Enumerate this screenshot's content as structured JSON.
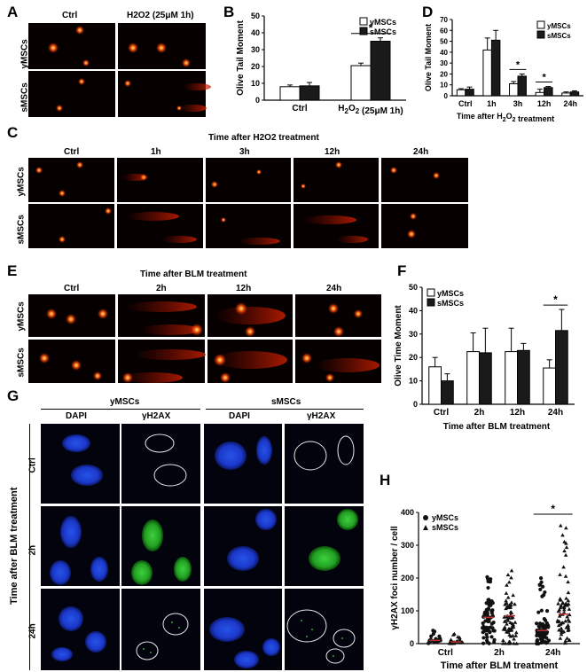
{
  "panels": {
    "A": "A",
    "B": "B",
    "C": "C",
    "D": "D",
    "E": "E",
    "F": "F",
    "G": "G",
    "H": "H"
  },
  "panelA": {
    "col1": "Ctrl",
    "col2": "H2O2 (25μM 1h)",
    "row1": "yMSCs",
    "row2": "sMSCs"
  },
  "panelC": {
    "title": "Time after  H2O2 treatment",
    "cols": [
      "Ctrl",
      "1h",
      "3h",
      "12h",
      "24h"
    ],
    "row1": "yMSCs",
    "row2": "sMSCs"
  },
  "panelE": {
    "title": "Time after  BLM  treatment",
    "cols": [
      "Ctrl",
      "2h",
      "12h",
      "24h"
    ],
    "row1": "yMSCs",
    "row2": "sMSCs"
  },
  "panelG": {
    "group1": "yMSCs",
    "group2": "sMSCs",
    "cols": [
      "DAPI",
      "γH2AX",
      "DAPI",
      "γH2AX"
    ],
    "rows": [
      "Ctrl",
      "2h",
      "24h"
    ],
    "side": "Time after BLM treatment"
  },
  "chart_data": [
    {
      "id": "B",
      "type": "bar",
      "categories": [
        "Ctrl",
        "H2O2 (25μM 1h)"
      ],
      "series": [
        {
          "name": "yMSCs",
          "values": [
            8,
            20.5
          ],
          "errors": [
            1,
            1.5
          ]
        },
        {
          "name": "sMSCs",
          "values": [
            8.5,
            35
          ],
          "errors": [
            2,
            2
          ]
        }
      ],
      "ylabel": "Olive Tail Moment",
      "ylim": [
        0,
        50
      ],
      "yticks": [
        0,
        10,
        20,
        30,
        40,
        50
      ],
      "legend": "top-right",
      "significance": [
        {
          "category": 1,
          "label": "*"
        }
      ]
    },
    {
      "id": "D",
      "type": "bar",
      "categories": [
        "Ctrl",
        "1h",
        "3h",
        "12h",
        "24h"
      ],
      "series": [
        {
          "name": "yMSCs",
          "values": [
            5.5,
            42,
            11,
            3,
            2.5
          ],
          "errors": [
            1,
            11,
            2,
            3,
            1
          ]
        },
        {
          "name": "sMSCs",
          "values": [
            6,
            51,
            18,
            7.5,
            3.5
          ],
          "errors": [
            2,
            9,
            2,
            1,
            1
          ]
        }
      ],
      "ylabel": "Olive Tail Moment",
      "xlabel": "Time after   H2O2 treatment",
      "ylim": [
        0,
        70
      ],
      "yticks": [
        0,
        10,
        20,
        30,
        40,
        50,
        60,
        70
      ],
      "legend": "top-right",
      "significance": [
        {
          "category": 2,
          "label": "*"
        },
        {
          "category": 3,
          "label": "*"
        }
      ]
    },
    {
      "id": "F",
      "type": "bar",
      "categories": [
        "Ctrl",
        "2h",
        "12h",
        "24h"
      ],
      "series": [
        {
          "name": "yMSCs",
          "values": [
            16,
            22.5,
            22.5,
            15.5
          ],
          "errors": [
            4,
            8,
            10,
            3.5
          ]
        },
        {
          "name": "sMSCs",
          "values": [
            10,
            22,
            23,
            31.5
          ],
          "errors": [
            3,
            10.5,
            3,
            9
          ]
        }
      ],
      "ylabel": "Olive Time Moment",
      "xlabel": "Time after   BLM   treatment",
      "ylim": [
        0,
        50
      ],
      "yticks": [
        0,
        10,
        20,
        30,
        40,
        50
      ],
      "legend": "top-left",
      "significance": [
        {
          "category": 3,
          "label": "*"
        }
      ]
    },
    {
      "id": "H",
      "type": "scatter",
      "categories": [
        "Ctrl",
        "2h",
        "24h"
      ],
      "series": [
        {
          "name": "yMSCs",
          "marker": "circle",
          "median": [
            10,
            80,
            40
          ],
          "max": [
            45,
            215,
            205
          ]
        },
        {
          "name": "sMSCs",
          "marker": "triangle",
          "median": [
            5,
            85,
            90
          ],
          "max": [
            35,
            235,
            380
          ]
        }
      ],
      "ylabel": "γH2AX foci number / cell",
      "xlabel": "Time after BLM treatment",
      "ylim": [
        0,
        400
      ],
      "yticks": [
        0,
        100,
        200,
        300,
        400
      ],
      "legend": "top-left",
      "significance": [
        {
          "category": 2,
          "label": "*"
        }
      ]
    }
  ]
}
